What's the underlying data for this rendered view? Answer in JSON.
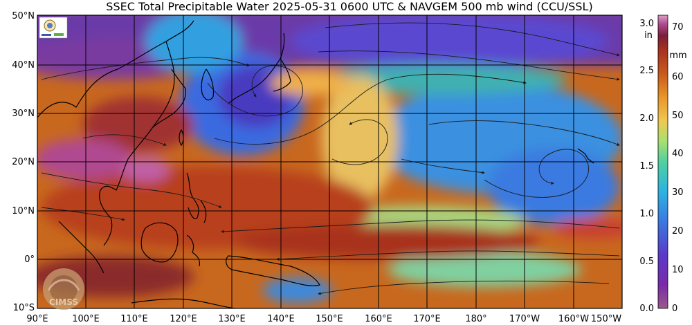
{
  "title": "SSEC Total Precipitable Water  2025-05-31 0600 UTC & NAVGEM 500 mb wind (CCU/SSL)",
  "lat_labels": [
    "50°N",
    "40°N",
    "30°N",
    "20°N",
    "10°N",
    "0°",
    "10°S"
  ],
  "lon_labels": [
    "90°E",
    "100°E",
    "110°E",
    "120°E",
    "130°E",
    "140°E",
    "150°E",
    "160°E",
    "170°E",
    "180°",
    "170°W",
    "160°W",
    "150°W"
  ],
  "colorbar": {
    "in_unit": "in",
    "mm_unit": "mm",
    "in_ticks": [
      "3.0",
      "2.5",
      "2.0",
      "1.5",
      "1.0",
      "0.5",
      "0.0"
    ],
    "mm_ticks": [
      "70",
      "60",
      "50",
      "40",
      "30",
      "20",
      "10",
      "0"
    ],
    "colors": [
      "#dca0c8",
      "#b04a90",
      "#7a1e3a",
      "#a8321e",
      "#c85a1e",
      "#e8962a",
      "#f0c850",
      "#a8e070",
      "#50d0a0",
      "#2eb4e0",
      "#3a7ae0",
      "#5a3ac8",
      "#7a2aa8",
      "#9a5a8a"
    ]
  },
  "logos": {
    "top_logo": "SSEC/CIMSS seal",
    "bottom_logo": "CIMSS"
  },
  "colors": {
    "frame": "#000000",
    "grid": "#000000",
    "coast": "#000000",
    "streamline": "#1a1a1a"
  }
}
